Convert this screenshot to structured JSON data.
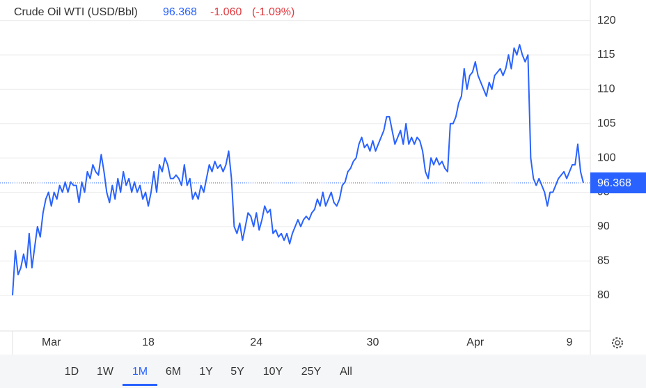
{
  "chart_data": {
    "type": "line",
    "title": "Crude Oil WTI (USD/Bbl)",
    "price": 96.368,
    "change": "-1.060",
    "change_pct": "(-1.09%)",
    "color": "#2962ff",
    "change_color": "#e0393e",
    "values": [
      80,
      86.5,
      83,
      84,
      86,
      84,
      89,
      84,
      87,
      90,
      88.5,
      92,
      94,
      95,
      93,
      95,
      94,
      96,
      95,
      96.5,
      95,
      96.5,
      96,
      96,
      93.5,
      96.5,
      95,
      98,
      97,
      99,
      98,
      97.5,
      100.5,
      98,
      95,
      93.5,
      96,
      94,
      97,
      95,
      98,
      96,
      97,
      95,
      96.5,
      95,
      96,
      94,
      95,
      93,
      95,
      98,
      95,
      99,
      98,
      100,
      99,
      97,
      97,
      97.5,
      97,
      96,
      99,
      96,
      97,
      94,
      95,
      94,
      96,
      95,
      97,
      99,
      98,
      99.5,
      98.5,
      99,
      98,
      99,
      101,
      97,
      90,
      89,
      90.5,
      88,
      90,
      92,
      91.5,
      90,
      92,
      89.5,
      91,
      93,
      92,
      92.5,
      89,
      89.5,
      88.5,
      89,
      88,
      89,
      87.5,
      89,
      90,
      91,
      90,
      91,
      91.5,
      91,
      92,
      92.5,
      94,
      93,
      95,
      93,
      94,
      95,
      93.5,
      93,
      94,
      96,
      96.5,
      98,
      98.5,
      99.5,
      100,
      102,
      103,
      101.5,
      102,
      101,
      102.5,
      101,
      102,
      103,
      104,
      106,
      106,
      104,
      102,
      103,
      104,
      102,
      105,
      102,
      103,
      102,
      103,
      102.5,
      101,
      98,
      97,
      100,
      99,
      100,
      99,
      99.5,
      98.5,
      98,
      105,
      105,
      106,
      108,
      109,
      113,
      110,
      112,
      112.5,
      114,
      112,
      111,
      110,
      109,
      111,
      110,
      112,
      112.5,
      113,
      112,
      113,
      115,
      113,
      116,
      115,
      116.5,
      115,
      114,
      115,
      100,
      97,
      96,
      97,
      96,
      95,
      93,
      95,
      95,
      96,
      97,
      97.5,
      98,
      97,
      98,
      99,
      99,
      102,
      98,
      96.368
    ],
    "xticks": [
      {
        "value": 14,
        "label": "Mar"
      },
      {
        "value": 49,
        "label": "18"
      },
      {
        "value": 88,
        "label": "24"
      },
      {
        "value": 130,
        "label": "30"
      },
      {
        "value": 167,
        "label": "Apr"
      },
      {
        "value": 201,
        "label": "9"
      }
    ],
    "ylim": [
      74.8,
      123.0
    ],
    "yticks": [
      80,
      85,
      90,
      95,
      100,
      105,
      110,
      115,
      120
    ],
    "grid": true,
    "range_buttons": [
      "1D",
      "1W",
      "1M",
      "6M",
      "1Y",
      "5Y",
      "10Y",
      "25Y",
      "All"
    ],
    "active_range": "1M"
  }
}
